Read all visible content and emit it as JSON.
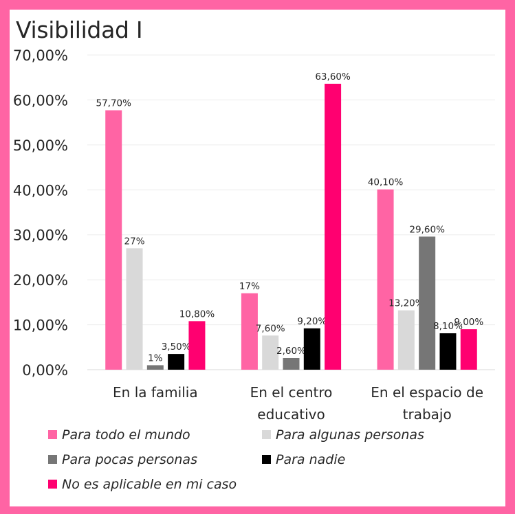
{
  "chart_data": {
    "type": "bar",
    "title": "Visibilidad I",
    "xlabel": "",
    "ylabel": "",
    "ylim": [
      0,
      70
    ],
    "yticks": [
      0,
      10,
      20,
      30,
      40,
      50,
      60,
      70
    ],
    "ytick_labels": [
      "0,00%",
      "10,00%",
      "20,00%",
      "30,00%",
      "40,00%",
      "50,00%",
      "60,00%",
      "70,00%"
    ],
    "grid": true,
    "legend_position": "bottom",
    "categories": [
      [
        "En la familia"
      ],
      [
        "En el centro",
        "educativo"
      ],
      [
        "En el espacio de",
        "trabajo"
      ]
    ],
    "series": [
      {
        "name": "Para todo el mundo",
        "color": "#ff64a4",
        "values": [
          57.7,
          17,
          40.1
        ],
        "labels": [
          "57,70%",
          "17%",
          "40,10%"
        ]
      },
      {
        "name": "Para algunas personas",
        "color": "#d9d9d9",
        "values": [
          27,
          7.6,
          13.2
        ],
        "labels": [
          "27%",
          "7,60%",
          "13,20%"
        ]
      },
      {
        "name": "Para pocas personas",
        "color": "#767676",
        "values": [
          1,
          2.6,
          29.6
        ],
        "labels": [
          "1%",
          "2,60%",
          "29,60%"
        ]
      },
      {
        "name": "Para nadie",
        "color": "#000000",
        "values": [
          3.5,
          9.2,
          8.1
        ],
        "labels": [
          "3,50%",
          "9,20%",
          "8,10%"
        ]
      },
      {
        "name": "No es aplicable en mi caso",
        "color": "#ff0070",
        "values": [
          10.8,
          63.6,
          9.0
        ],
        "labels": [
          "10,80%",
          "63,60%",
          "9,00%"
        ]
      }
    ]
  }
}
